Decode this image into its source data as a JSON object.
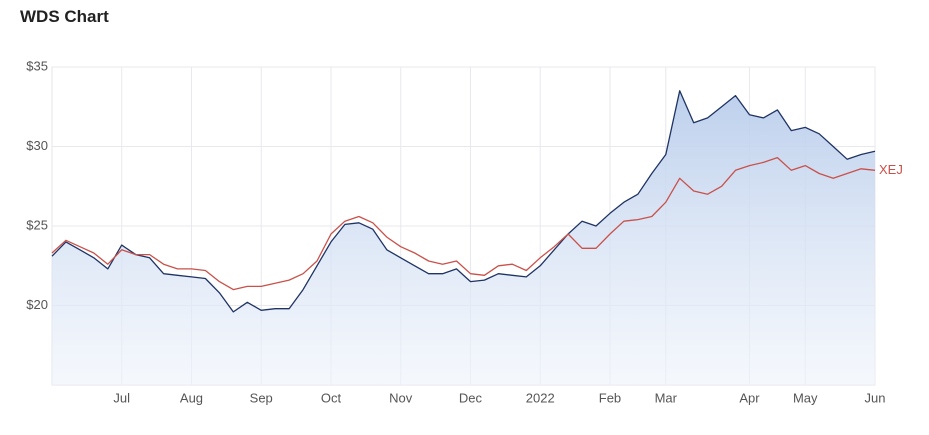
{
  "chart_data": {
    "type": "line",
    "title": "WDS Chart",
    "categories": [
      null,
      null,
      null,
      null,
      null,
      "Jul",
      null,
      null,
      null,
      null,
      "Aug",
      null,
      null,
      null,
      null,
      "Sep",
      null,
      null,
      null,
      null,
      "Oct",
      null,
      null,
      null,
      null,
      "Nov",
      null,
      null,
      null,
      null,
      "Dec",
      null,
      null,
      null,
      null,
      "2022",
      null,
      null,
      null,
      null,
      "Feb",
      null,
      null,
      null,
      "Mar",
      null,
      null,
      null,
      null,
      null,
      "Apr",
      null,
      null,
      null,
      "May",
      null,
      null,
      null,
      null,
      "Jun"
    ],
    "series": [
      {
        "color": "#1f3364",
        "area": true,
        "values": [
          23.1,
          24.0,
          23.5,
          23.0,
          22.3,
          23.8,
          23.2,
          23.0,
          22.0,
          21.9,
          21.8,
          21.7,
          20.8,
          19.6,
          20.2,
          19.7,
          19.8,
          19.8,
          21.0,
          22.5,
          24.0,
          25.1,
          25.2,
          24.8,
          23.5,
          23.0,
          22.5,
          22.0,
          22.0,
          22.3,
          21.5,
          21.6,
          22.0,
          21.9,
          21.8,
          22.5,
          23.5,
          24.5,
          25.3,
          25.0,
          25.8,
          26.5,
          27.0,
          28.3,
          29.5,
          33.5,
          31.5,
          31.8,
          32.5,
          33.2,
          32.0,
          31.8,
          32.3,
          31.0,
          31.2,
          30.8,
          30.0,
          29.2,
          29.5,
          29.7
        ]
      },
      {
        "name": "XEJ",
        "color": "#c9514a",
        "area": false,
        "values": [
          23.3,
          24.1,
          23.7,
          23.3,
          22.6,
          23.5,
          23.2,
          23.2,
          22.6,
          22.3,
          22.3,
          22.2,
          21.5,
          21.0,
          21.2,
          21.2,
          21.4,
          21.6,
          22.0,
          22.8,
          24.5,
          25.3,
          25.6,
          25.2,
          24.3,
          23.7,
          23.3,
          22.8,
          22.6,
          22.8,
          22.0,
          21.9,
          22.5,
          22.6,
          22.2,
          23.0,
          23.7,
          24.5,
          23.6,
          23.6,
          24.5,
          25.3,
          25.4,
          25.6,
          26.5,
          28.0,
          27.2,
          27.0,
          27.5,
          28.5,
          28.8,
          29.0,
          29.3,
          28.5,
          28.8,
          28.3,
          28.0,
          28.3,
          28.6,
          28.5
        ]
      }
    ],
    "ylim": [
      15,
      35
    ],
    "yticks": [
      {
        "value": 20,
        "label": "$20"
      },
      {
        "value": 25,
        "label": "$25"
      },
      {
        "value": 30,
        "label": "$30"
      },
      {
        "value": 35,
        "label": "$35"
      }
    ],
    "grid": true
  }
}
